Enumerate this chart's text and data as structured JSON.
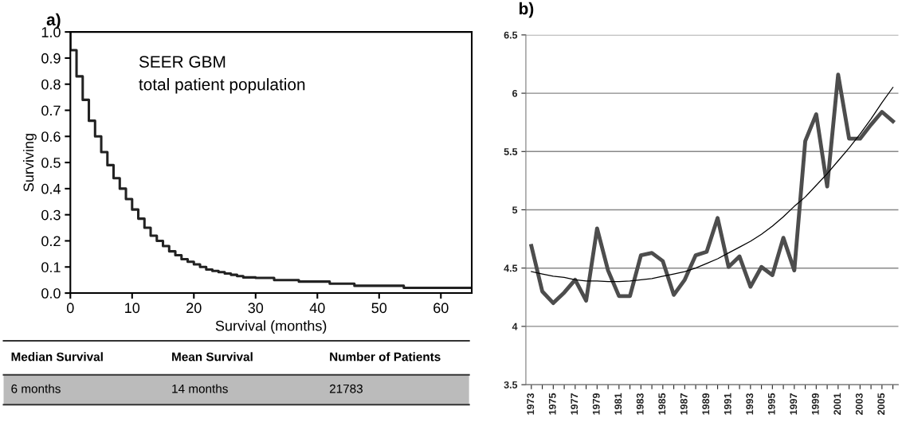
{
  "chart_data": [
    {
      "type": "step",
      "title": "a)",
      "xlabel": "Survival (months)",
      "ylabel": "Surviving",
      "x": [
        0,
        0,
        1,
        2,
        3,
        4,
        5,
        6,
        7,
        8,
        9,
        10,
        11,
        12,
        13,
        14,
        15,
        16,
        17,
        18,
        19,
        20,
        21,
        22,
        23,
        24,
        25,
        26,
        27,
        28,
        30,
        33,
        37,
        42,
        46,
        54,
        65
      ],
      "series": [
        {
          "color": "#222222",
          "values": [
            1.0,
            0.93,
            0.83,
            0.74,
            0.66,
            0.6,
            0.54,
            0.49,
            0.44,
            0.4,
            0.36,
            0.32,
            0.285,
            0.25,
            0.22,
            0.2,
            0.18,
            0.16,
            0.145,
            0.13,
            0.12,
            0.11,
            0.1,
            0.09,
            0.085,
            0.08,
            0.075,
            0.07,
            0.065,
            0.06,
            0.058,
            0.05,
            0.044,
            0.036,
            0.028,
            0.02,
            0.02
          ]
        }
      ],
      "xlim": [
        0,
        65
      ],
      "xticks": [
        0,
        10,
        20,
        30,
        40,
        50,
        60
      ],
      "ylim": [
        0,
        1.0
      ],
      "yticks": [
        {
          "value": 0,
          "label": "0.0"
        },
        {
          "value": 0.1,
          "label": "0.1"
        },
        {
          "value": 0.2,
          "label": "0.2"
        },
        {
          "value": 0.3,
          "label": "0.3"
        },
        {
          "value": 0.4,
          "label": "0.4"
        },
        {
          "value": 0.5,
          "label": "0.5"
        },
        {
          "value": 0.6,
          "label": "0.6"
        },
        {
          "value": 0.7,
          "label": "0.7"
        },
        {
          "value": 0.8,
          "label": "0.8"
        },
        {
          "value": 0.9,
          "label": "0.9"
        },
        {
          "value": 1.0,
          "label": "1.0"
        }
      ],
      "annotations": [
        "SEER GBM\ntotal patient population",
        "Median Survival",
        "Mean Survival",
        "Number of Patients",
        "6 months",
        "14 months",
        "21783"
      ]
    },
    {
      "type": "line",
      "title": "b)",
      "categories": [
        "1973",
        null,
        "1975",
        null,
        "1977",
        null,
        "1979",
        null,
        "1981",
        null,
        "1983",
        null,
        "1985",
        null,
        "1987",
        null,
        "1989",
        null,
        "1991",
        null,
        "1993",
        null,
        "1995",
        null,
        "1997",
        null,
        "1999",
        null,
        "2001",
        null,
        "2003",
        null,
        "2005",
        null
      ],
      "series": [
        {
          "color": "#4d4d4d",
          "values": [
            4.69,
            4.3,
            4.2,
            4.29,
            4.4,
            4.22,
            4.84,
            4.48,
            4.26,
            4.26,
            4.61,
            4.63,
            4.56,
            4.27,
            4.4,
            4.61,
            4.64,
            4.93,
            4.51,
            4.6,
            4.34,
            4.51,
            4.44,
            4.76,
            4.48,
            5.59,
            5.82,
            5.2,
            6.16,
            5.61,
            5.61,
            5.73,
            5.84,
            5.76
          ]
        },
        {
          "color": "#000000",
          "values": [
            4.47,
            4.45,
            4.43,
            4.42,
            4.4,
            4.39,
            4.39,
            4.385,
            4.385,
            4.39,
            4.4,
            4.41,
            4.43,
            4.45,
            4.47,
            4.5,
            4.54,
            4.58,
            4.63,
            4.68,
            4.73,
            4.79,
            4.86,
            4.94,
            5.03,
            5.11,
            5.21,
            5.31,
            5.42,
            5.53,
            5.65,
            5.78,
            5.92,
            6.05
          ]
        }
      ],
      "ylim": [
        3.5,
        6.5
      ],
      "yticks": [
        3.5,
        4,
        4.5,
        5,
        5.5,
        6,
        6.5
      ],
      "grid": "y"
    }
  ]
}
